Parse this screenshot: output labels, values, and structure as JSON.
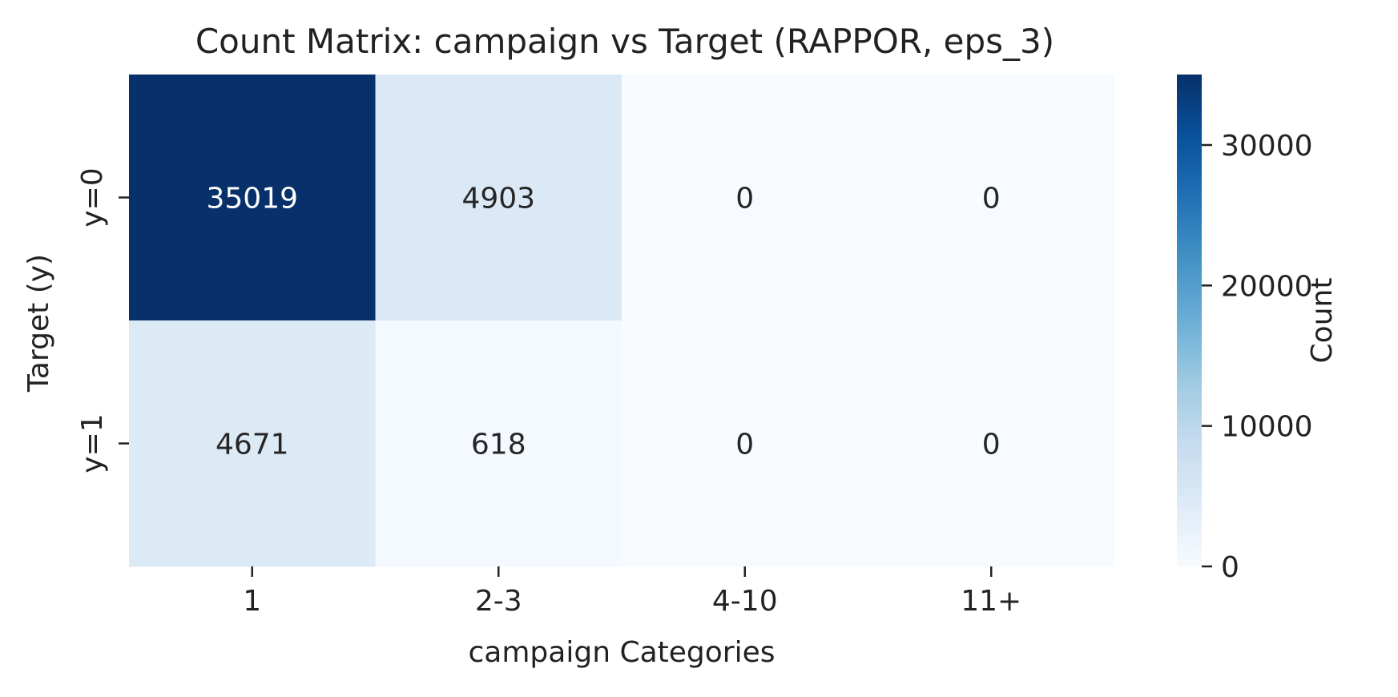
{
  "chart_data": {
    "type": "heatmap",
    "title": "Count Matrix: campaign vs Target (RAPPOR, eps_3)",
    "xlabel": "campaign Categories",
    "ylabel": "Target (y)",
    "x_categories": [
      "1",
      "2-3",
      "4-10",
      "11+"
    ],
    "y_categories": [
      "y=0",
      "y=1"
    ],
    "values": [
      [
        35019,
        4903,
        0,
        0
      ],
      [
        4671,
        618,
        0,
        0
      ]
    ],
    "colorbar": {
      "label": "Count",
      "range": [
        0,
        35019
      ],
      "ticks": [
        0,
        10000,
        20000,
        30000
      ],
      "colormap": "Blues",
      "colors": [
        "#f7fbff",
        "#deebf7",
        "#c6dbef",
        "#9ecae1",
        "#6baed6",
        "#4292c6",
        "#2171b5",
        "#08519c",
        "#08306b"
      ]
    },
    "annotation_colors": {
      "on_dark": "#ffffff",
      "on_light": "#262626"
    }
  }
}
